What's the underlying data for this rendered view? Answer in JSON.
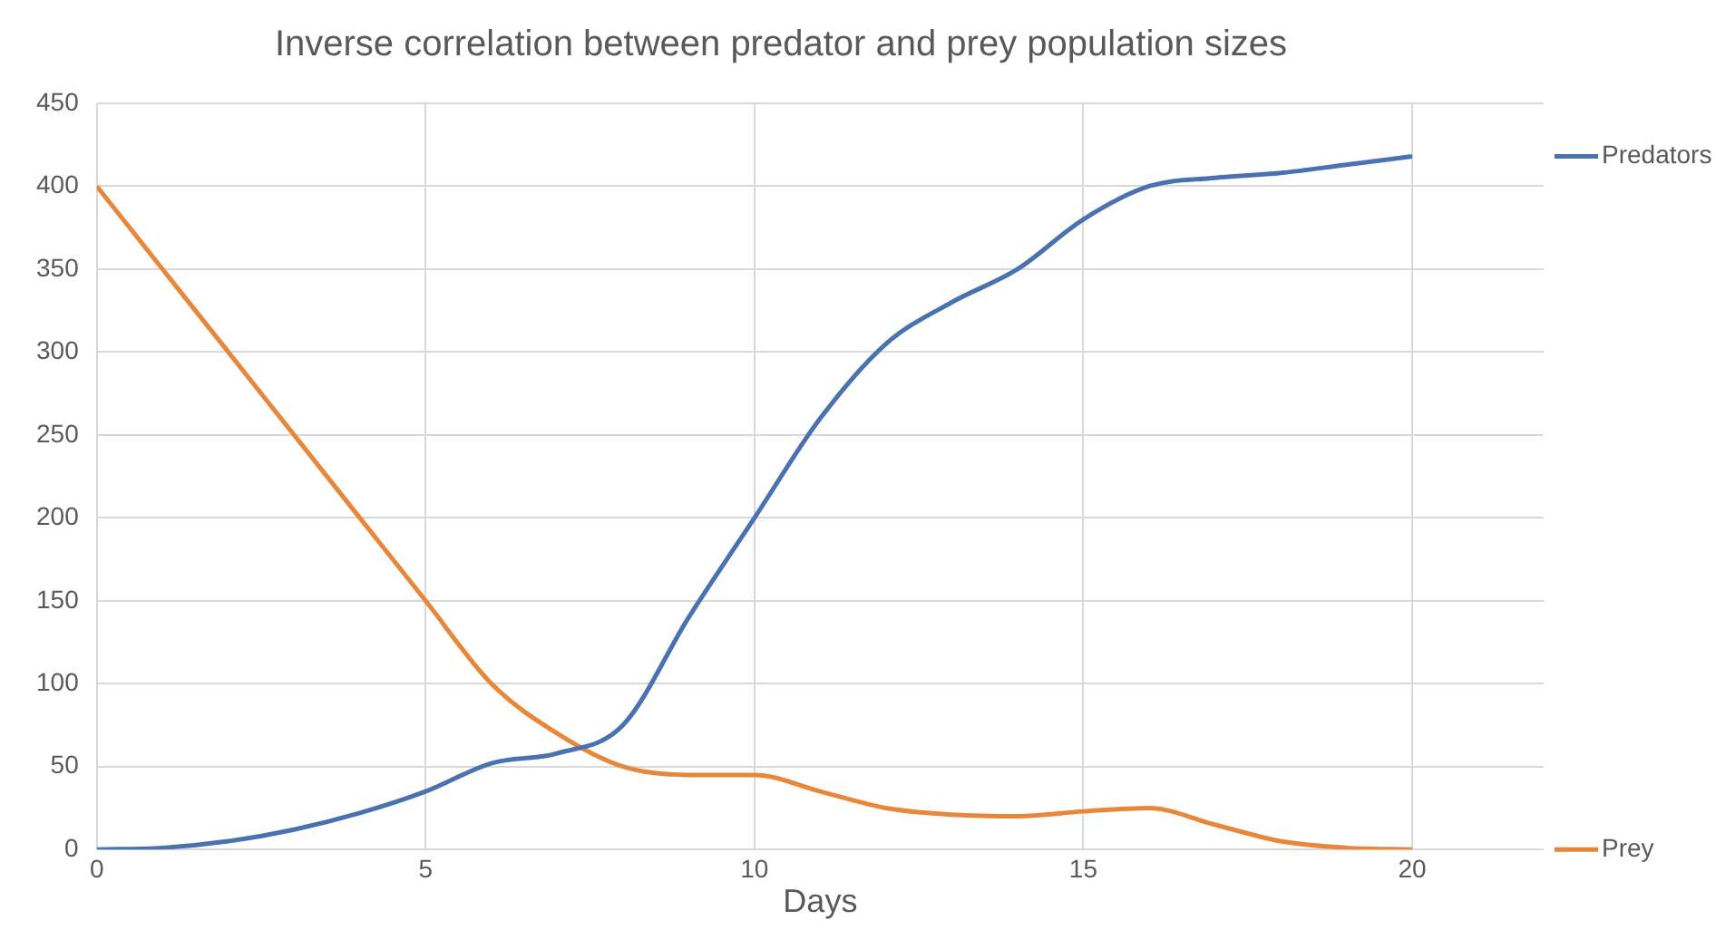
{
  "chart_data": {
    "type": "line",
    "title": "Inverse correlation between predator and prey population sizes",
    "xlabel": "Days",
    "x": [
      0,
      1,
      2,
      3,
      4,
      5,
      6,
      7,
      8,
      9,
      10,
      11,
      12,
      13,
      14,
      15,
      16,
      17,
      18,
      19,
      20
    ],
    "series": [
      {
        "name": "Predators",
        "color": "#4a72b0",
        "values": [
          0,
          1,
          5,
          12,
          22,
          35,
          52,
          58,
          75,
          140,
          200,
          260,
          305,
          330,
          350,
          380,
          400,
          405,
          408,
          413,
          418
        ]
      },
      {
        "name": "Prey",
        "color": "#e8873a",
        "values": [
          400,
          350,
          300,
          250,
          200,
          150,
          100,
          70,
          50,
          45,
          45,
          35,
          25,
          21,
          20,
          23,
          25,
          15,
          5,
          1,
          0
        ]
      }
    ],
    "xlim": [
      0,
      22
    ],
    "xticks": [
      0,
      5,
      10,
      15,
      20
    ],
    "ylim": [
      0,
      450
    ],
    "yticks": [
      0,
      50,
      100,
      150,
      200,
      250,
      300,
      350,
      400,
      450
    ],
    "grid": true,
    "marker": "none",
    "legend": "right"
  }
}
